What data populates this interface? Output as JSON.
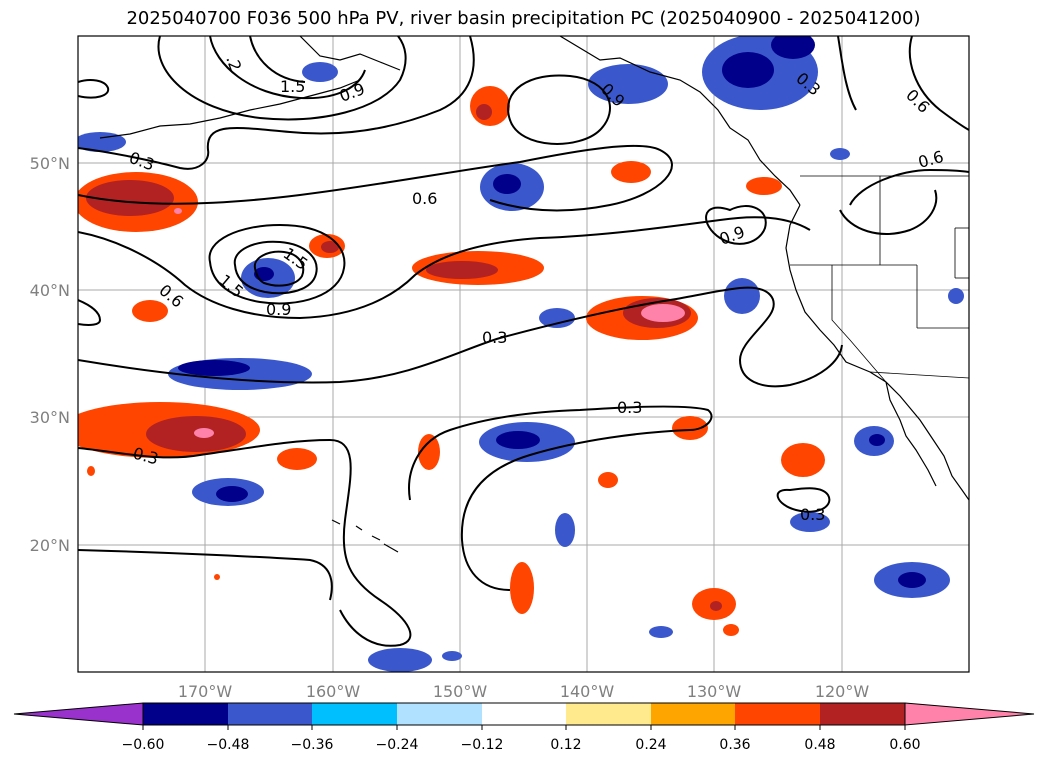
{
  "title": "2025040700 F036 500 hPa PV, river basin precipitation PC (2025040900 - 2025041200)",
  "map": {
    "lat_labels": [
      "50°N",
      "40°N",
      "30°N",
      "20°N"
    ],
    "lon_labels": [
      "170°W",
      "160°W",
      "150°W",
      "140°W",
      "130°W",
      "120°W"
    ],
    "lat_range": [
      10,
      60
    ],
    "lon_range": [
      -180,
      -110
    ],
    "grid": true
  },
  "contour_labels": [
    "1.5",
    ".2",
    "0.9",
    "0.3",
    "0.6",
    "1.5",
    "1.5",
    "0.6",
    "0.9",
    "0.3",
    "0.3",
    "0.3",
    "0.3",
    "0.9",
    "0.6",
    "0.6",
    "0.9",
    "0.3"
  ],
  "colorbar": {
    "ticks": [
      "−0.60",
      "−0.48",
      "−0.36",
      "−0.24",
      "−0.12",
      "0.12",
      "0.24",
      "0.36",
      "0.48",
      "0.60"
    ],
    "colors": [
      "#9932cc",
      "#00008b",
      "#3a58cc",
      "#00bfff",
      "#b0e2ff",
      "#ffffff",
      "#ffeb8e",
      "#ffa500",
      "#ff4500",
      "#b22222",
      "#ff82ab"
    ],
    "extend": "both"
  }
}
